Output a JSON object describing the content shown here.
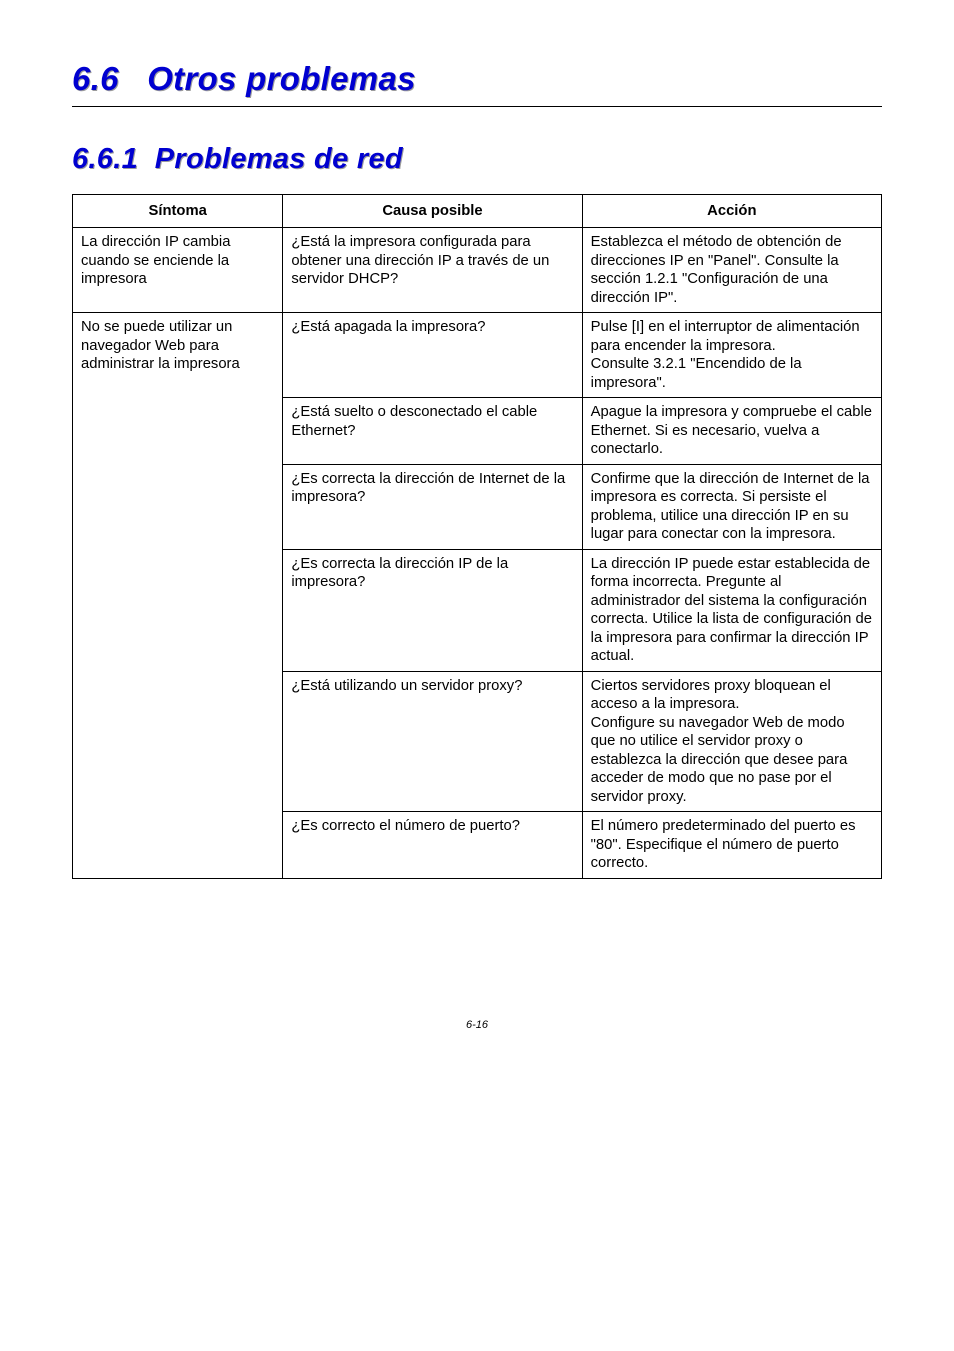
{
  "section": {
    "number": "6.6",
    "title": "Otros problemas",
    "subnumber": "6.6.1",
    "subtitle": "Problemas de red",
    "title_color": "#0000d0",
    "title_shadow": "#9b9b9b",
    "title_fontsize_pt": 25,
    "subtitle_fontsize_pt": 22
  },
  "table": {
    "columns": [
      "Síntoma",
      "Causa posible",
      "Acción"
    ],
    "column_widths_pct": [
      26,
      37,
      37
    ],
    "border_color": "#000000",
    "cell_fontsize_pt": 11,
    "rows": [
      {
        "symptom": "La dirección IP cambia cuando se enciende la impresora",
        "cells": [
          {
            "cause": "¿Está la impresora configurada para obtener una dirección IP a través de un servidor DHCP?",
            "action": "Establezca el método de obtención de direcciones IP en \"Panel\". Consulte la sección 1.2.1 \"Configuración de una dirección IP\"."
          }
        ]
      },
      {
        "symptom": "No se puede utilizar un navegador Web para administrar la impresora",
        "cells": [
          {
            "cause": "¿Está apagada la impresora?",
            "action": "Pulse [I] en el interruptor de alimentación para encender la impresora.\nConsulte 3.2.1 \"Encendido de la impresora\"."
          },
          {
            "cause": "¿Está suelto o desconectado el cable Ethernet?",
            "action": "Apague la impresora y compruebe el cable Ethernet. Si es necesario, vuelva a conectarlo."
          },
          {
            "cause": "¿Es correcta la dirección de Internet de la impresora?",
            "action": "Confirme que la dirección de Internet de la impresora es correcta. Si persiste el problema, utilice una dirección IP en su lugar para conectar con la impresora."
          },
          {
            "cause": "¿Es correcta la dirección IP de la impresora?",
            "action": "La dirección IP puede estar establecida de forma incorrecta. Pregunte al administrador del sistema la configuración correcta. Utilice la lista de configuración de la impresora para confirmar la dirección IP actual."
          },
          {
            "cause": "¿Está utilizando un servidor proxy?",
            "action": "Ciertos servidores proxy bloquean el acceso a la impresora.\nConfigure su navegador Web de modo que no utilice el servidor proxy o establezca la dirección que desee para acceder de modo que no pase por el servidor proxy."
          },
          {
            "cause": "¿Es correcto el número de puerto?",
            "action": "El número predeterminado del puerto es \"80\". Especifique el número de puerto correcto."
          }
        ]
      }
    ]
  },
  "footer": {
    "text": "6-16",
    "fontsize_pt": 8
  }
}
